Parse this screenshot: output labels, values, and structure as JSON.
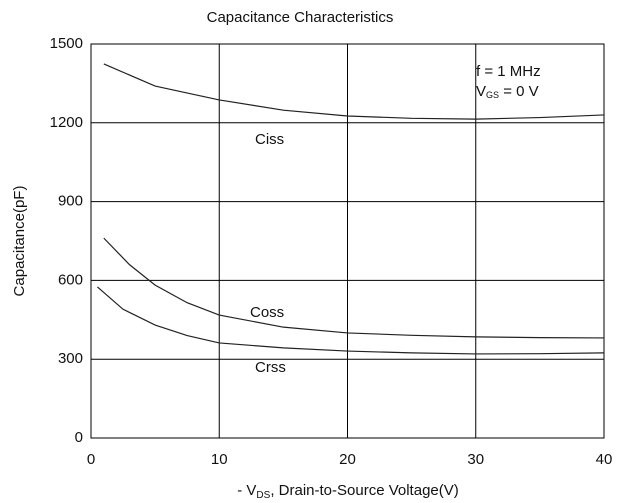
{
  "chart_data": {
    "type": "line",
    "title": "Capacitance Characteristics",
    "y_label": "Capacitance(pF)",
    "x_label": {
      "prefix": "- V",
      "sub": "DS",
      "rest": ", Drain-to-Source Voltage(V)"
    },
    "annotations": [
      {
        "text": "f = 1 MHz"
      },
      {
        "text": "V",
        "sub": "GS",
        "rest": " = 0 V"
      }
    ],
    "xlim": [
      0,
      40
    ],
    "xticks": [
      0,
      10,
      20,
      30,
      40
    ],
    "ylim": [
      0,
      1500
    ],
    "yticks": [
      0,
      300,
      600,
      900,
      1200,
      1500
    ],
    "grid": true,
    "series": [
      {
        "name": "Ciss",
        "color": "#222222",
        "x": [
          1,
          5,
          10,
          15,
          20,
          25,
          30,
          35,
          40
        ],
        "values": [
          1424,
          1340,
          1287,
          1248,
          1226,
          1217,
          1214,
          1220,
          1230
        ]
      },
      {
        "name": "Coss",
        "color": "#222222",
        "x": [
          1,
          3,
          5,
          7.5,
          10,
          15,
          20,
          25,
          30,
          35,
          40
        ],
        "values": [
          761,
          660,
          582,
          515,
          468,
          422,
          400,
          391,
          385,
          382,
          381
        ]
      },
      {
        "name": "Crss",
        "color": "#222222",
        "x": [
          0.5,
          2.5,
          5,
          7.5,
          10,
          15,
          20,
          25,
          30,
          35,
          40
        ],
        "values": [
          575,
          490,
          430,
          390,
          362,
          343,
          331,
          324,
          320,
          321,
          324
        ]
      }
    ]
  }
}
